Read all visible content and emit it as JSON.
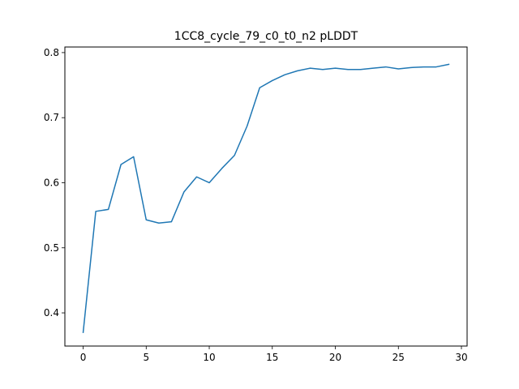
{
  "chart_data": {
    "type": "line",
    "title": "1CC8_cycle_79_c0_t0_n2 pLDDT",
    "xlabel": "",
    "ylabel": "",
    "xlim": [
      -1.45,
      30.45
    ],
    "ylim": [
      0.349,
      0.8086
    ],
    "x_ticks": [
      0,
      5,
      10,
      15,
      20,
      25,
      30
    ],
    "x_tick_labels": [
      "0",
      "5",
      "10",
      "15",
      "20",
      "25",
      "30"
    ],
    "y_ticks": [
      0.4,
      0.5,
      0.6,
      0.7,
      0.8
    ],
    "y_tick_labels": [
      "0.4",
      "0.5",
      "0.6",
      "0.7",
      "0.8"
    ],
    "grid": false,
    "series": [
      {
        "color": "#1f77b4",
        "x": [
          0,
          1,
          2,
          3,
          4,
          5,
          6,
          7,
          8,
          9,
          10,
          11,
          12,
          13,
          14,
          15,
          16,
          17,
          18,
          19,
          20,
          21,
          22,
          23,
          24,
          25,
          26,
          27,
          28,
          29
        ],
        "y": [
          0.37,
          0.556,
          0.559,
          0.628,
          0.64,
          0.543,
          0.538,
          0.54,
          0.586,
          0.609,
          0.6,
          0.622,
          0.642,
          0.687,
          0.746,
          0.757,
          0.766,
          0.772,
          0.776,
          0.774,
          0.776,
          0.774,
          0.774,
          0.776,
          0.778,
          0.775,
          0.777,
          0.778,
          0.778,
          0.782
        ]
      }
    ]
  }
}
